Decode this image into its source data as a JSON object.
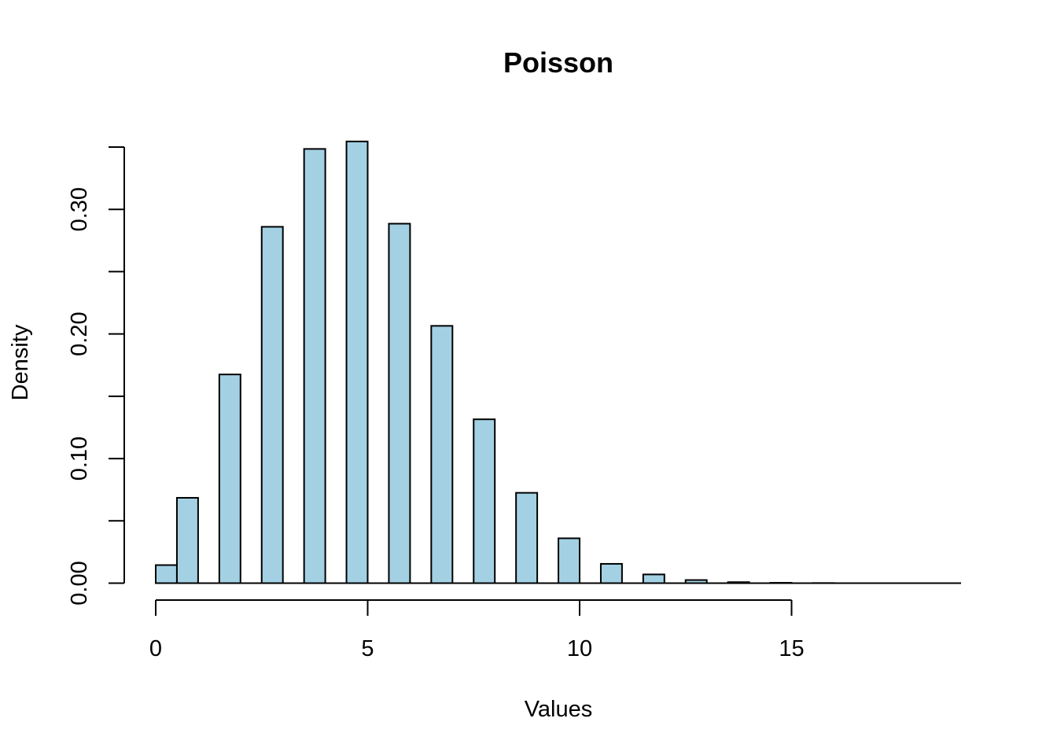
{
  "chart_data": {
    "type": "bar",
    "title": "Poisson",
    "xlabel": "Values",
    "ylabel": "Density",
    "xlim": [
      0,
      19
    ],
    "ylim": [
      0,
      0.35
    ],
    "x_ticks": [
      0,
      5,
      10,
      15
    ],
    "x_tick_labels": [
      "0",
      "5",
      "10",
      "15"
    ],
    "y_ticks": [
      0,
      0.05,
      0.1,
      0.15,
      0.2,
      0.25,
      0.3,
      0.35
    ],
    "y_tick_labels": [
      "0.00",
      "",
      "0.10",
      "",
      "0.20",
      "",
      "0.30",
      ""
    ],
    "bar_color": "#a3d1e3",
    "grid": false,
    "bars": [
      {
        "x0": 0.0,
        "x1": 0.5,
        "value": 0.0145
      },
      {
        "x0": 0.5,
        "x1": 1.0,
        "value": 0.0685
      },
      {
        "x0": 1.5,
        "x1": 2.0,
        "value": 0.1675
      },
      {
        "x0": 2.5,
        "x1": 3.0,
        "value": 0.286
      },
      {
        "x0": 3.5,
        "x1": 4.0,
        "value": 0.3485
      },
      {
        "x0": 4.5,
        "x1": 5.0,
        "value": 0.3545
      },
      {
        "x0": 5.5,
        "x1": 6.0,
        "value": 0.2885
      },
      {
        "x0": 6.5,
        "x1": 7.0,
        "value": 0.2065
      },
      {
        "x0": 7.5,
        "x1": 8.0,
        "value": 0.1315
      },
      {
        "x0": 8.5,
        "x1": 9.0,
        "value": 0.0725
      },
      {
        "x0": 9.5,
        "x1": 10.0,
        "value": 0.036
      },
      {
        "x0": 10.5,
        "x1": 11.0,
        "value": 0.0155
      },
      {
        "x0": 11.5,
        "x1": 12.0,
        "value": 0.007
      },
      {
        "x0": 12.5,
        "x1": 13.0,
        "value": 0.0025
      },
      {
        "x0": 13.5,
        "x1": 14.0,
        "value": 0.0008
      },
      {
        "x0": 14.5,
        "x1": 15.0,
        "value": 0.0003
      },
      {
        "x0": 15.5,
        "x1": 16.0,
        "value": 0.0001
      },
      {
        "x0": 16.5,
        "x1": 17.0,
        "value": 0.0
      },
      {
        "x0": 17.5,
        "x1": 18.0,
        "value": 0.0
      },
      {
        "x0": 18.5,
        "x1": 19.0,
        "value": 0.0
      }
    ]
  }
}
